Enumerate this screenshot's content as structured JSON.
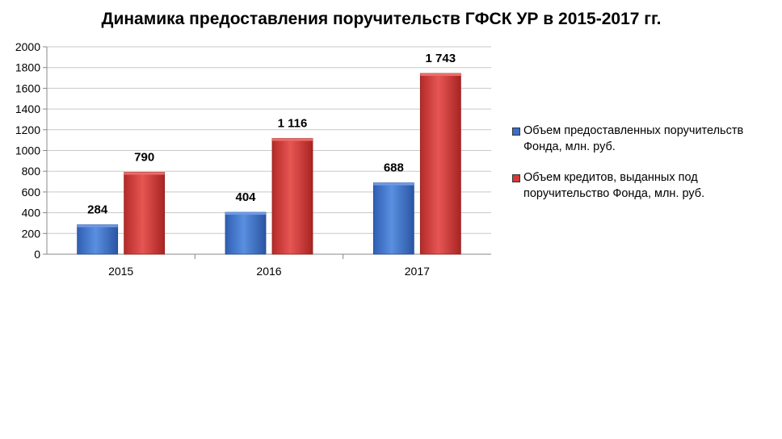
{
  "chart_data": {
    "type": "bar",
    "title": "Динамика предоставления поручительств ГФСК УР в 2015-2017 гг.",
    "categories": [
      "2015",
      "2016",
      "2017"
    ],
    "series": [
      {
        "name": "Объем предоставленных поручительств Фонда, млн. руб.",
        "values": [
          284,
          404,
          688
        ],
        "labels": [
          "284",
          "404",
          "688"
        ],
        "color": "#3b6fc7"
      },
      {
        "name": "Объем кредитов, выданных под поручительство Фонда, млн. руб.",
        "values": [
          790,
          1116,
          1743
        ],
        "labels": [
          "790",
          "1 116",
          "1 743"
        ],
        "color": "#d43a37"
      }
    ],
    "ylim": [
      0,
      2000
    ],
    "yticks": [
      "0",
      "200",
      "400",
      "600",
      "800",
      "1000",
      "1200",
      "1400",
      "1600",
      "1800",
      "2000"
    ],
    "grid": true,
    "legend_position": "right"
  }
}
